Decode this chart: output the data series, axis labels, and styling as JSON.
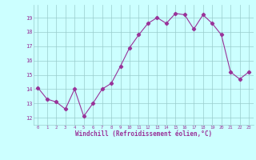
{
  "x": [
    0,
    1,
    2,
    3,
    4,
    5,
    6,
    7,
    8,
    9,
    10,
    11,
    12,
    13,
    14,
    15,
    16,
    17,
    18,
    19,
    20,
    21,
    22,
    23
  ],
  "y": [
    14.1,
    13.3,
    13.1,
    12.6,
    14.0,
    12.1,
    13.0,
    14.0,
    14.4,
    15.6,
    16.9,
    17.8,
    18.6,
    19.0,
    18.6,
    19.3,
    19.2,
    18.2,
    19.2,
    18.6,
    17.8,
    15.2,
    14.7,
    15.2
  ],
  "line_color": "#993399",
  "marker": "D",
  "marker_size": 2.2,
  "bg_color": "#ccffff",
  "grid_color": "#99cccc",
  "xlabel": "Windchill (Refroidissement éolien,°C)",
  "xlabel_color": "#993399",
  "tick_color": "#993399",
  "ylim": [
    11.5,
    19.9
  ],
  "xlim": [
    -0.5,
    23.5
  ],
  "yticks": [
    12,
    13,
    14,
    15,
    16,
    17,
    18,
    19
  ],
  "xticks": [
    0,
    1,
    2,
    3,
    4,
    5,
    6,
    7,
    8,
    9,
    10,
    11,
    12,
    13,
    14,
    15,
    16,
    17,
    18,
    19,
    20,
    21,
    22,
    23
  ],
  "xtick_labels": [
    "0",
    "1",
    "2",
    "3",
    "4",
    "5",
    "6",
    "7",
    "8",
    "9",
    "10",
    "11",
    "12",
    "13",
    "14",
    "15",
    "16",
    "17",
    "18",
    "19",
    "20",
    "21",
    "22",
    "23"
  ]
}
